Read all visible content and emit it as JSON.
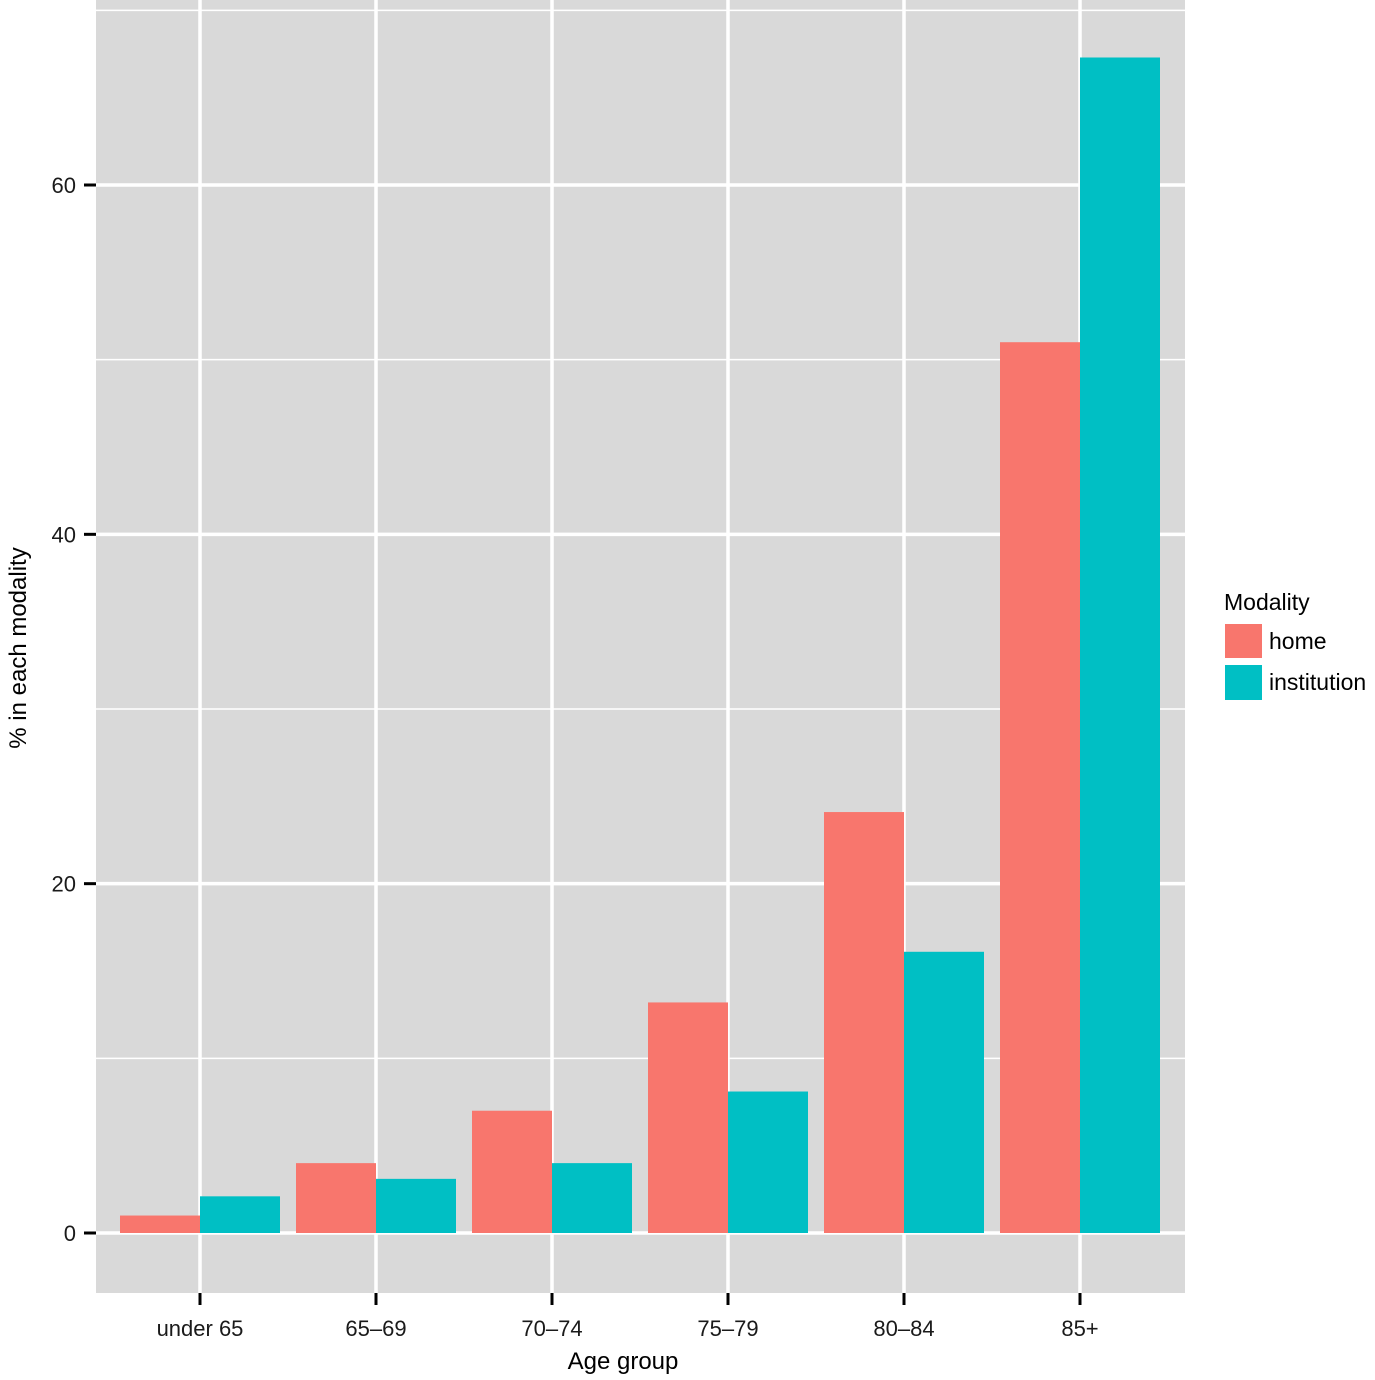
{
  "chart_data": {
    "type": "bar",
    "title": "",
    "xlabel": "Age group",
    "ylabel": "% in each modality",
    "categories": [
      "under 65",
      "65–69",
      "70–74",
      "75–79",
      "80–84",
      "85+"
    ],
    "series": [
      {
        "name": "home",
        "color": "#F8766D",
        "values": [
          1,
          4,
          7,
          13.2,
          24.1,
          51
        ]
      },
      {
        "name": "institution",
        "color": "#00BFC4",
        "values": [
          2.1,
          3.1,
          4,
          8.1,
          16.1,
          67.3
        ]
      }
    ],
    "ylim": [
      -3.5,
      70.8
    ],
    "yticks": [
      0,
      20,
      40,
      60
    ],
    "grid": true,
    "panel_background": "#D9D9D9",
    "legend": {
      "title": "Modality",
      "position": "right"
    }
  }
}
